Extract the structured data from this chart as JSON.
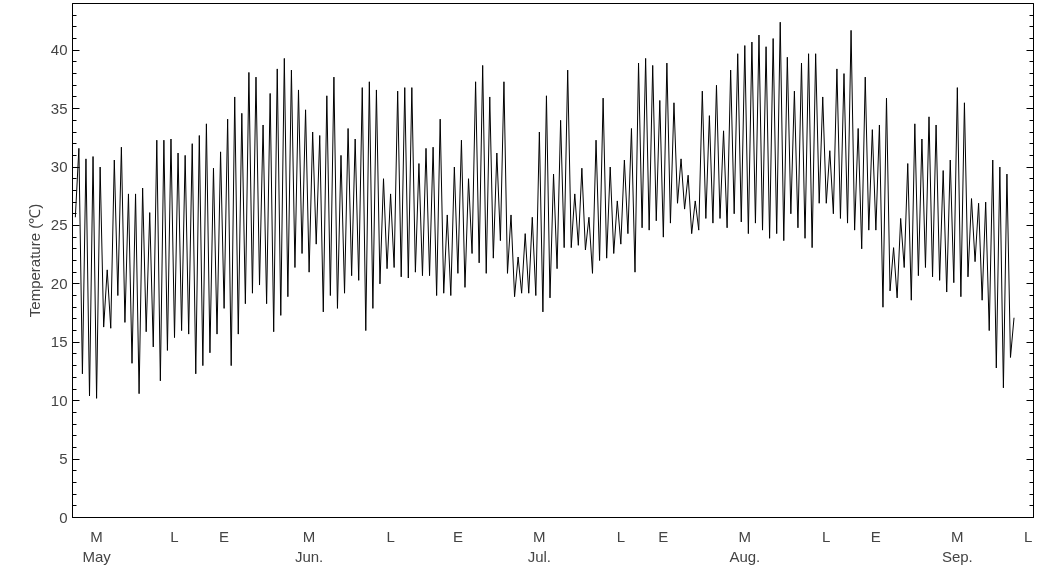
{
  "chart_data": {
    "type": "line",
    "ylabel": "Temperature (℃)",
    "color": "#000000",
    "line_style": "solid",
    "ylim": [
      0,
      44
    ],
    "yticks": [
      0,
      5,
      10,
      15,
      20,
      25,
      30,
      35,
      40
    ],
    "categories": [
      null,
      null,
      null,
      null,
      null,
      null,
      "M\nMay",
      null,
      null,
      null,
      null,
      null,
      null,
      null,
      null,
      null,
      null,
      null,
      null,
      null,
      null,
      null,
      null,
      null,
      null,
      null,
      null,
      null,
      "L",
      null,
      null,
      null,
      null,
      null,
      null,
      null,
      null,
      null,
      null,
      null,
      null,
      null,
      "E",
      null,
      null,
      null,
      null,
      null,
      null,
      null,
      null,
      null,
      null,
      null,
      null,
      null,
      null,
      null,
      null,
      null,
      null,
      null,
      null,
      null,
      null,
      null,
      "M\nJun.",
      null,
      null,
      null,
      null,
      null,
      null,
      null,
      null,
      null,
      null,
      null,
      null,
      null,
      null,
      null,
      null,
      null,
      null,
      null,
      null,
      null,
      null,
      "L",
      null,
      null,
      null,
      null,
      null,
      null,
      null,
      null,
      null,
      null,
      null,
      null,
      null,
      null,
      null,
      null,
      null,
      null,
      "E",
      null,
      null,
      null,
      null,
      null,
      null,
      null,
      null,
      null,
      null,
      null,
      null,
      null,
      null,
      null,
      null,
      null,
      null,
      null,
      null,
      null,
      null,
      "M\nJul.",
      null,
      null,
      null,
      null,
      null,
      null,
      null,
      null,
      null,
      null,
      null,
      null,
      null,
      null,
      null,
      null,
      null,
      null,
      null,
      null,
      null,
      null,
      "L",
      null,
      null,
      null,
      null,
      null,
      null,
      null,
      null,
      null,
      null,
      null,
      "E",
      null,
      null,
      null,
      null,
      null,
      null,
      null,
      null,
      null,
      null,
      null,
      null,
      null,
      null,
      null,
      null,
      null,
      null,
      null,
      null,
      null,
      null,
      "M\nAug.",
      null,
      null,
      null,
      null,
      null,
      null,
      null,
      null,
      null,
      null,
      null,
      null,
      null,
      null,
      null,
      null,
      null,
      null,
      null,
      null,
      null,
      null,
      "L",
      null,
      null,
      null,
      null,
      null,
      null,
      null,
      null,
      null,
      null,
      null,
      null,
      null,
      "E",
      null,
      null,
      null,
      null,
      null,
      null,
      null,
      null,
      null,
      null,
      null,
      null,
      null,
      null,
      null,
      null,
      null,
      null,
      null,
      null,
      null,
      null,
      "M\nSep.",
      null,
      null,
      null,
      null,
      null,
      null,
      null,
      null,
      null,
      null,
      null,
      null,
      null,
      null,
      null,
      null,
      null,
      null,
      null,
      "L"
    ],
    "values": [
      25.7,
      31.6,
      12.3,
      30.7,
      10.4,
      30.9,
      10.2,
      30.0,
      16.3,
      21.2,
      16.2,
      30.6,
      19.0,
      31.7,
      16.7,
      27.7,
      13.2,
      27.7,
      10.6,
      28.2,
      15.9,
      26.1,
      14.6,
      32.3,
      11.7,
      32.3,
      14.3,
      32.4,
      15.4,
      31.2,
      16.0,
      31.0,
      15.7,
      32.0,
      12.3,
      32.7,
      13.0,
      33.7,
      14.1,
      29.9,
      15.7,
      31.3,
      17.9,
      34.1,
      13.0,
      36.0,
      15.7,
      34.6,
      18.3,
      38.1,
      19.2,
      37.7,
      19.9,
      33.6,
      18.3,
      36.3,
      15.9,
      38.4,
      17.3,
      39.3,
      18.9,
      38.3,
      21.4,
      36.6,
      22.6,
      34.9,
      21.0,
      33.0,
      23.4,
      32.7,
      17.6,
      36.1,
      19.0,
      37.7,
      17.9,
      31.0,
      19.2,
      33.3,
      20.7,
      32.4,
      20.3,
      36.8,
      16.0,
      37.3,
      17.9,
      36.6,
      20.0,
      29.0,
      21.3,
      27.7,
      21.4,
      36.5,
      20.6,
      36.8,
      20.5,
      36.8,
      21.0,
      30.3,
      20.7,
      31.6,
      20.7,
      31.7,
      19.0,
      34.1,
      19.2,
      25.9,
      19.0,
      30.0,
      20.9,
      32.3,
      19.7,
      29.0,
      22.6,
      37.3,
      21.8,
      38.7,
      20.9,
      36.0,
      22.2,
      31.2,
      23.7,
      37.3,
      20.9,
      25.9,
      18.9,
      22.3,
      19.2,
      24.3,
      19.2,
      25.7,
      19.0,
      33.0,
      17.6,
      36.1,
      18.8,
      29.4,
      21.3,
      34.0,
      23.1,
      38.3,
      23.1,
      27.7,
      23.3,
      29.9,
      22.9,
      25.7,
      20.9,
      32.3,
      22.0,
      35.9,
      22.2,
      30.0,
      22.6,
      27.1,
      23.4,
      30.6,
      24.3,
      33.3,
      21.0,
      38.9,
      24.8,
      39.3,
      24.6,
      38.7,
      25.4,
      35.7,
      24.0,
      38.9,
      25.2,
      35.5,
      26.9,
      30.7,
      26.4,
      29.3,
      24.3,
      27.1,
      24.6,
      36.5,
      25.6,
      34.4,
      25.2,
      37.0,
      25.6,
      33.1,
      24.8,
      38.3,
      26.0,
      39.7,
      25.3,
      40.4,
      24.3,
      40.7,
      25.2,
      41.3,
      24.6,
      40.3,
      23.9,
      41.0,
      24.3,
      42.4,
      23.7,
      39.4,
      26.0,
      36.5,
      24.8,
      38.9,
      23.9,
      39.7,
      23.1,
      39.7,
      26.9,
      36.0,
      26.9,
      31.4,
      26.0,
      38.4,
      25.6,
      38.0,
      25.2,
      41.7,
      24.6,
      33.3,
      23.0,
      37.7,
      24.6,
      33.2,
      24.6,
      33.6,
      18.0,
      35.9,
      19.4,
      23.1,
      18.8,
      25.6,
      21.4,
      30.3,
      18.6,
      33.7,
      20.7,
      32.4,
      21.4,
      34.3,
      20.6,
      33.6,
      20.3,
      29.7,
      19.3,
      30.6,
      20.1,
      36.8,
      18.9,
      35.5,
      20.6,
      27.3,
      21.9,
      26.9,
      18.6,
      27.0,
      16.0,
      30.6,
      12.8,
      30.0,
      11.1,
      29.4,
      13.7,
      17.1,
      null,
      null,
      null,
      null
    ]
  }
}
